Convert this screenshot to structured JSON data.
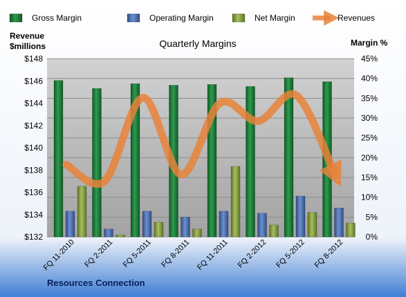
{
  "chart_data": {
    "type": "bar",
    "title": "Quarterly Margins",
    "footer_label": "Resources Connection",
    "left_axis": {
      "label_line1": "Revenue",
      "label_line2": "$millions",
      "range": [
        132,
        148
      ],
      "ticks": [
        132,
        134,
        136,
        138,
        140,
        142,
        144,
        146,
        148
      ],
      "tick_labels": [
        "$132",
        "$134",
        "$136",
        "$138",
        "$140",
        "$142",
        "$144",
        "$146",
        "$148"
      ]
    },
    "right_axis": {
      "label": "Margin %",
      "range": [
        0,
        45
      ],
      "ticks": [
        0,
        5,
        10,
        15,
        20,
        25,
        30,
        35,
        40,
        45
      ],
      "tick_labels": [
        "0%",
        "5%",
        "10%",
        "15%",
        "20%",
        "25%",
        "30%",
        "35%",
        "40%",
        "45%"
      ]
    },
    "categories": [
      "FQ 11-2010",
      "FQ 2-2011",
      "FQ 5-2011",
      "FQ 8-2011",
      "FQ 11-2011",
      "FQ 2-2012",
      "FQ 5-2012",
      "FQ 8-2012"
    ],
    "legend": {
      "position": "top",
      "items": [
        "Gross Margin",
        "Operating Margin",
        "Net Margin",
        "Revenues"
      ]
    },
    "series": [
      {
        "name": "Gross Margin",
        "kind": "bar",
        "axis": "right",
        "color": "#1f7a3a",
        "values": [
          39.5,
          37.5,
          38.7,
          38.3,
          38.5,
          38.0,
          40.2,
          39.2
        ]
      },
      {
        "name": "Operating Margin",
        "kind": "bar",
        "axis": "right",
        "color": "#4a6fb0",
        "values": [
          6.5,
          2.0,
          6.5,
          5.0,
          6.5,
          6.0,
          10.3,
          7.3
        ]
      },
      {
        "name": "Net Margin",
        "kind": "bar",
        "axis": "right",
        "color": "#8fa84a",
        "values": [
          12.8,
          0.5,
          3.7,
          2.0,
          17.8,
          3.0,
          6.2,
          3.5
        ]
      },
      {
        "name": "Revenues",
        "kind": "line",
        "axis": "left",
        "color": "#e8823a",
        "values": [
          138.5,
          137.0,
          144.5,
          137.6,
          144.0,
          142.4,
          144.7,
          137.6
        ]
      }
    ],
    "grid": true
  }
}
